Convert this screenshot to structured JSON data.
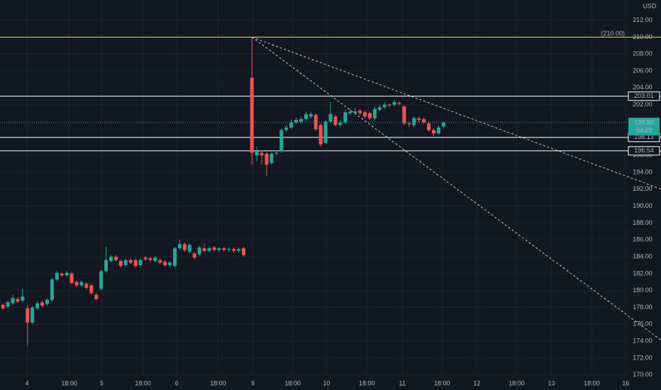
{
  "chart_data": {
    "type": "candlestick",
    "currency": "USD",
    "background": "#131722",
    "grid": true,
    "up_color": "#26a69a",
    "down_color": "#ef5350",
    "xlim": [
      -0.6,
      127.2
    ],
    "ylim": [
      169.9,
      214.4
    ],
    "xticks": [
      {
        "value": 4.9,
        "label": "4"
      },
      {
        "value": 13.5,
        "label": "18:00"
      },
      {
        "value": 20.1,
        "label": "5"
      },
      {
        "value": 28.5,
        "label": "18:00"
      },
      {
        "value": 35.4,
        "label": "6"
      },
      {
        "value": 43.8,
        "label": "18:00"
      },
      {
        "value": 50.9,
        "label": "9"
      },
      {
        "value": 59.0,
        "label": "18:00"
      },
      {
        "value": 65.9,
        "label": "10"
      },
      {
        "value": 74.1,
        "label": "18:00"
      },
      {
        "value": 81.3,
        "label": "11"
      },
      {
        "value": 89.4,
        "label": "18:00"
      },
      {
        "value": 96.5,
        "label": "12"
      },
      {
        "value": 104.6,
        "label": "18:00"
      },
      {
        "value": 111.7,
        "label": "13"
      },
      {
        "value": 119.9,
        "label": "18:00"
      },
      {
        "value": 126.8,
        "label": "16"
      }
    ],
    "yticks": [
      {
        "value": 170,
        "label": "170.00"
      },
      {
        "value": 172,
        "label": "172.00"
      },
      {
        "value": 174,
        "label": "174.00"
      },
      {
        "value": 176,
        "label": "176.00"
      },
      {
        "value": 178,
        "label": "178.00"
      },
      {
        "value": 180,
        "label": "180.00"
      },
      {
        "value": 182,
        "label": "182.00"
      },
      {
        "value": 184,
        "label": "184.00"
      },
      {
        "value": 186,
        "label": "186.00"
      },
      {
        "value": 188,
        "label": "188.00"
      },
      {
        "value": 190,
        "label": "190.00"
      },
      {
        "value": 192,
        "label": "192.00"
      },
      {
        "value": 194,
        "label": "194.00"
      },
      {
        "value": 196,
        "label": "196.00"
      },
      {
        "value": 198,
        "label": "198.00"
      },
      {
        "value": 200,
        "label": "200.00"
      },
      {
        "value": 202,
        "label": "202.00"
      },
      {
        "value": 204,
        "label": "204.00"
      },
      {
        "value": 206,
        "label": "206.00"
      },
      {
        "value": 208,
        "label": "208.00"
      },
      {
        "value": 210,
        "label": "210.00"
      },
      {
        "value": 212,
        "label": "212.00"
      }
    ],
    "candles": {
      "x": [
        0,
        1,
        2,
        3,
        4,
        5,
        6,
        7,
        8,
        9,
        10,
        11,
        12,
        13,
        14,
        15,
        16,
        17,
        18,
        19,
        20,
        21,
        22,
        23,
        24,
        25,
        26,
        27,
        28,
        29,
        30,
        31,
        32,
        33,
        34,
        35,
        36,
        37,
        38,
        39,
        40,
        41,
        42,
        43,
        44,
        45,
        46,
        47,
        48,
        49,
        50.7,
        51.7,
        52.7,
        53.7,
        54.7,
        55.7,
        56.7,
        57.7,
        58.7,
        59.7,
        60.7,
        61.7,
        62.7,
        63.7,
        64.7,
        65.7,
        66.7,
        67.7,
        68.7,
        69.7,
        70.7,
        71.7,
        72.7,
        73.7,
        74.7,
        75.7,
        76.7,
        77.7,
        78.7,
        79.7,
        80.7,
        81.7,
        82.7,
        83.7,
        84.7,
        85.7,
        86.7,
        87.7,
        88.7,
        89.7
      ],
      "open": [
        178.3,
        178.1,
        178.5,
        179.0,
        178.8,
        177.9,
        176.2,
        177.9,
        178.6,
        178.4,
        178.9,
        181.3,
        182.0,
        181.8,
        182.0,
        181.0,
        180.6,
        180.8,
        180.6,
        179.5,
        180.2,
        182.3,
        183.5,
        184.0,
        183.5,
        183.0,
        183.6,
        183.6,
        183.0,
        183.9,
        183.8,
        183.5,
        183.6,
        183.4,
        183.0,
        182.9,
        185.0,
        185.5,
        184.6,
        184.4,
        184.3,
        185.0,
        184.7,
        185.1,
        184.8,
        185.0,
        184.8,
        184.9,
        184.7,
        185.0,
        205.2,
        196.0,
        196.3,
        196.2,
        195.1,
        196.2,
        196.5,
        199.0,
        199.3,
        199.9,
        200.0,
        200.3,
        200.6,
        200.8,
        199.6,
        197.5,
        200.0,
        200.6,
        199.6,
        199.9,
        201.0,
        201.0,
        201.3,
        201.1,
        201.0,
        200.4,
        201.4,
        201.7,
        202.0,
        202.0,
        202.2,
        201.8,
        199.8,
        199.6,
        200.4,
        200.3,
        199.8,
        199.0,
        198.6,
        199.4
      ],
      "high": [
        178.5,
        178.8,
        179.5,
        179.2,
        180.2,
        178.3,
        178.2,
        178.7,
        178.8,
        179.1,
        181.5,
        182.3,
        182.2,
        182.3,
        182.2,
        181.2,
        181.2,
        181.0,
        180.8,
        179.7,
        182.5,
        185.2,
        184.2,
        184.2,
        183.7,
        183.8,
        183.8,
        183.8,
        183.8,
        184.1,
        184.0,
        184.1,
        183.8,
        183.6,
        183.5,
        185.2,
        186.0,
        185.7,
        185.6,
        184.6,
        185.3,
        185.6,
        185.2,
        185.3,
        185.2,
        185.2,
        185.1,
        185.1,
        185.1,
        185.2,
        210.0,
        197.0,
        196.6,
        196.4,
        196.4,
        196.6,
        199.2,
        199.6,
        200.3,
        200.5,
        200.6,
        201.2,
        201.2,
        201.0,
        199.8,
        200.2,
        202.3,
        200.8,
        200.2,
        201.4,
        201.5,
        201.6,
        201.5,
        201.3,
        201.2,
        201.8,
        202.0,
        202.3,
        202.2,
        202.6,
        202.4,
        202.0,
        200.0,
        200.6,
        200.6,
        200.5,
        200.0,
        199.2,
        199.5,
        200.0
      ],
      "low": [
        177.7,
        177.9,
        178.3,
        178.5,
        178.6,
        173.4,
        176.0,
        177.7,
        178.0,
        178.2,
        178.7,
        181.1,
        181.6,
        181.6,
        180.7,
        180.4,
        180.4,
        180.1,
        179.5,
        178.8,
        180.0,
        182.1,
        183.3,
        183.4,
        182.7,
        182.8,
        183.1,
        182.7,
        182.8,
        183.5,
        183.4,
        183.3,
        183.1,
        182.8,
        182.8,
        182.7,
        184.8,
        184.6,
        184.4,
        183.7,
        184.1,
        184.5,
        184.5,
        184.6,
        184.6,
        184.6,
        184.6,
        184.5,
        184.5,
        184.0,
        194.9,
        195.3,
        194.9,
        193.6,
        194.9,
        196.0,
        196.3,
        198.8,
        199.1,
        199.7,
        199.8,
        200.1,
        200.4,
        198.9,
        197.0,
        197.3,
        199.8,
        199.4,
        199.4,
        199.7,
        200.8,
        200.8,
        200.8,
        200.4,
        200.2,
        200.2,
        201.2,
        201.5,
        201.7,
        201.8,
        201.9,
        199.6,
        199.4,
        199.4,
        199.9,
        199.7,
        198.8,
        198.3,
        198.4,
        199.2
      ],
      "close": [
        177.9,
        178.6,
        179.1,
        178.7,
        179.3,
        176.2,
        178.0,
        178.5,
        178.2,
        178.9,
        181.3,
        182.1,
        181.8,
        182.1,
        180.9,
        180.6,
        181.0,
        180.3,
        179.7,
        179.0,
        182.3,
        183.6,
        184.0,
        183.6,
        182.9,
        183.6,
        183.3,
        182.9,
        183.6,
        183.7,
        183.6,
        183.9,
        183.3,
        183.0,
        183.3,
        185.0,
        185.5,
        184.8,
        185.4,
        183.9,
        185.1,
        184.7,
        185.0,
        184.8,
        185.0,
        184.8,
        184.9,
        184.7,
        184.9,
        184.2,
        196.3,
        196.5,
        196.0,
        194.9,
        196.2,
        196.3,
        199.0,
        199.3,
        199.9,
        200.2,
        200.3,
        200.9,
        200.9,
        199.1,
        197.3,
        200.0,
        200.9,
        199.6,
        199.9,
        201.1,
        201.2,
        201.2,
        201.0,
        200.6,
        200.4,
        201.5,
        201.7,
        202.0,
        201.9,
        202.3,
        202.1,
        199.8,
        199.7,
        200.4,
        200.2,
        199.9,
        199.0,
        198.6,
        199.3,
        199.88
      ]
    },
    "hlines": [
      {
        "value": 210,
        "label": "(210.00)",
        "color": "#e8e04a"
      },
      {
        "value": 203.01,
        "color": "#ffffff"
      },
      {
        "value": 198.13,
        "color": "#ffffff"
      },
      {
        "value": 196.54,
        "color": "#ffffff"
      }
    ],
    "trendlines": [
      {
        "x": [
          50.7,
          134.5
        ],
        "y": [
          210,
          191.9
        ]
      },
      {
        "x": [
          50.7,
          134.5
        ],
        "y": [
          210,
          173.9
        ]
      }
    ],
    "current_price": {
      "value": 199.88,
      "countdown": "04:23"
    }
  }
}
